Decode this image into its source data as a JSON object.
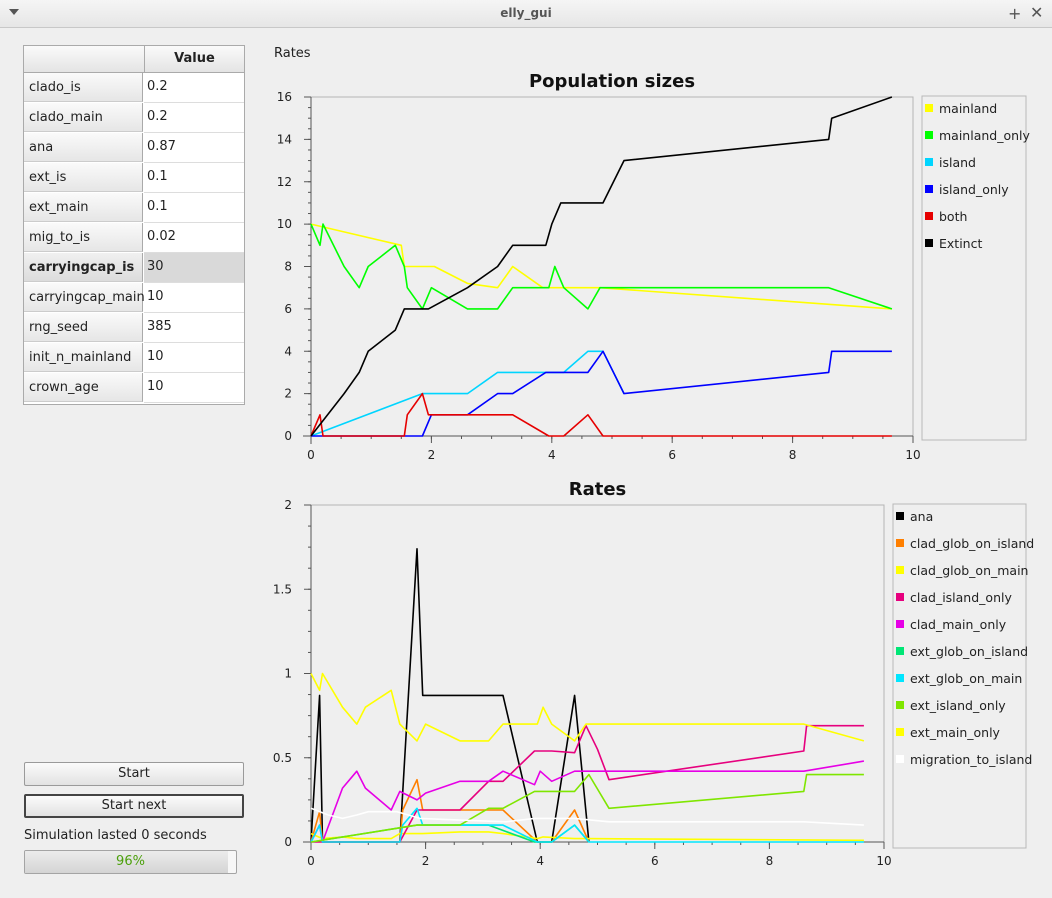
{
  "window": {
    "title": "elly_gui"
  },
  "params": {
    "header": "Value",
    "rows": [
      {
        "name": "clado_is",
        "value": "0.2"
      },
      {
        "name": "clado_main",
        "value": "0.2"
      },
      {
        "name": "ana",
        "value": "0.87"
      },
      {
        "name": "ext_is",
        "value": "0.1"
      },
      {
        "name": "ext_main",
        "value": "0.1"
      },
      {
        "name": "mig_to_is",
        "value": "0.02"
      },
      {
        "name": "carryingcap_is",
        "value": "30",
        "selected": true
      },
      {
        "name": "carryingcap_main",
        "value": "10"
      },
      {
        "name": "rng_seed",
        "value": "385"
      },
      {
        "name": "init_n_mainland",
        "value": "10"
      },
      {
        "name": "crown_age",
        "value": "10"
      }
    ]
  },
  "rates_label": "Rates",
  "buttons": {
    "start": "Start",
    "start_next": "Start next"
  },
  "status": "Simulation lasted 0 seconds",
  "progress": {
    "text": "96%",
    "value": 0.96
  },
  "chart_data": [
    {
      "type": "line",
      "title": "Population sizes",
      "xlim": [
        0,
        10
      ],
      "ylim": [
        0,
        16
      ],
      "xticks": [
        0,
        2,
        4,
        6,
        8,
        10
      ],
      "yticks": [
        0,
        2,
        4,
        6,
        8,
        10,
        12,
        14,
        16
      ],
      "legend": "right",
      "series": [
        {
          "name": "mainland",
          "color": "#ffff00",
          "x": [
            0,
            1.5,
            1.55,
            1.95,
            2.05,
            2.6,
            3.1,
            3.35,
            3.85,
            3.95,
            4.15,
            4.8,
            9.65
          ],
          "y": [
            10,
            9,
            8,
            8,
            8,
            7.2,
            7,
            8,
            7,
            7,
            7,
            7,
            6
          ]
        },
        {
          "name": "mainland_only",
          "color": "#00ff00",
          "x": [
            0,
            0.15,
            0.2,
            0.55,
            0.8,
            0.95,
            1.4,
            1.55,
            1.6,
            1.85,
            2.0,
            2.6,
            3.1,
            3.35,
            3.95,
            4.05,
            4.2,
            4.6,
            4.8,
            8.6,
            9.65
          ],
          "y": [
            10,
            9,
            10,
            8,
            7,
            8,
            9,
            8,
            7,
            6,
            7,
            6,
            6,
            7,
            7,
            8,
            7,
            6,
            7,
            7,
            6
          ]
        },
        {
          "name": "island",
          "color": "#00d5ff",
          "x": [
            0,
            1.85,
            2.6,
            3.1,
            3.9,
            4.2,
            4.6,
            4.85,
            5.2
          ],
          "y": [
            0,
            2,
            2,
            3,
            3,
            3,
            4,
            4,
            2
          ]
        },
        {
          "name": "island_only",
          "color": "#0000ff",
          "x": [
            0,
            1.85,
            2.0,
            2.6,
            3.1,
            3.35,
            3.9,
            4.6,
            4.85,
            5.2,
            8.6,
            8.65,
            9.65
          ],
          "y": [
            0,
            0,
            1,
            1,
            2,
            2,
            3,
            3,
            4,
            2,
            3,
            4,
            4
          ]
        },
        {
          "name": "both",
          "color": "#e60000",
          "x": [
            0,
            0.15,
            0.2,
            1.55,
            1.6,
            1.85,
            1.95,
            3.35,
            3.95,
            4.2,
            4.6,
            4.85,
            9.65
          ],
          "y": [
            0,
            1,
            0,
            0,
            1,
            2,
            1,
            1,
            0,
            0,
            1,
            0,
            0
          ]
        },
        {
          "name": "Extinct",
          "color": "#000000",
          "x": [
            0,
            0.55,
            0.8,
            0.95,
            1.4,
            1.55,
            1.95,
            2.6,
            3.1,
            3.35,
            3.9,
            4.0,
            4.15,
            4.85,
            5.2,
            8.6,
            8.65,
            9.65
          ],
          "y": [
            0,
            2,
            3,
            4,
            5,
            6,
            6,
            7,
            8,
            9,
            9,
            10,
            11,
            11,
            13,
            14,
            15,
            16
          ]
        }
      ]
    },
    {
      "type": "line",
      "title": "Rates",
      "xlim": [
        0,
        10
      ],
      "ylim": [
        0,
        2
      ],
      "xticks": [
        0,
        2,
        4,
        6,
        8,
        10
      ],
      "yticks": [
        0,
        0.5,
        1,
        1.5,
        2
      ],
      "legend": "right",
      "series": [
        {
          "name": "ana",
          "color": "#000000",
          "x": [
            0,
            0.15,
            0.2,
            1.55,
            1.85,
            1.95,
            3.35,
            3.95,
            4.2,
            4.6,
            4.85
          ],
          "y": [
            0,
            0.87,
            0,
            0,
            1.74,
            0.87,
            0.87,
            0,
            0,
            0.87,
            0
          ]
        },
        {
          "name": "clad_glob_on_island",
          "color": "#ff7f00",
          "x": [
            0,
            0.15,
            0.2,
            1.55,
            1.6,
            1.85,
            1.95,
            3.35,
            3.95,
            4.2,
            4.6,
            4.85
          ],
          "y": [
            0,
            0.18,
            0,
            0,
            0.19,
            0.37,
            0.19,
            0.19,
            0,
            0,
            0.19,
            0
          ]
        },
        {
          "name": "clad_glob_on_main",
          "color": "#ffff00",
          "x": [
            0,
            0.2,
            0.55,
            0.8,
            0.95,
            1.4,
            1.55,
            1.85,
            1.95,
            2.6,
            3.1,
            3.35,
            3.95,
            4.05,
            4.6,
            4.8,
            9.65
          ],
          "y": [
            0.05,
            0.02,
            0.03,
            0.02,
            0.02,
            0.02,
            0.05,
            0.05,
            0.05,
            0.06,
            0.06,
            0.05,
            0.02,
            0.03,
            0.02,
            0.02,
            0.01
          ]
        },
        {
          "name": "clad_island_only",
          "color": "#e6007e",
          "x": [
            0,
            1.55,
            1.85,
            1.95,
            2.6,
            3.1,
            3.35,
            3.9,
            4.2,
            4.6,
            4.8,
            5.0,
            5.2,
            8.6,
            8.65,
            9.65
          ],
          "y": [
            0,
            0,
            0.19,
            0.19,
            0.19,
            0.36,
            0.36,
            0.54,
            0.54,
            0.53,
            0.69,
            0.55,
            0.37,
            0.54,
            0.69,
            0.69
          ]
        },
        {
          "name": "clad_main_only",
          "color": "#e600e6",
          "x": [
            0,
            0.15,
            0.2,
            0.55,
            0.8,
            0.95,
            1.4,
            1.55,
            1.85,
            2.0,
            2.6,
            3.1,
            3.35,
            3.9,
            4.0,
            4.2,
            4.6,
            4.85,
            5.2,
            8.6,
            9.65
          ],
          "y": [
            0,
            0.1,
            0,
            0.32,
            0.42,
            0.32,
            0.19,
            0.3,
            0.25,
            0.29,
            0.36,
            0.36,
            0.42,
            0.34,
            0.42,
            0.36,
            0.42,
            0.42,
            0.42,
            0.42,
            0.48
          ]
        },
        {
          "name": "ext_glob_on_island",
          "color": "#00e676",
          "x": [
            0,
            1.85,
            2.6,
            3.1,
            3.9,
            4.2,
            4.6,
            4.85
          ],
          "y": [
            0,
            0.1,
            0.1,
            0.1,
            0,
            0,
            0.1,
            0
          ]
        },
        {
          "name": "ext_glob_on_main",
          "color": "#00e6ff",
          "x": [
            0,
            0.15,
            0.2,
            1.55,
            1.6,
            1.85,
            1.95,
            3.35,
            3.95,
            4.2,
            4.6,
            4.85,
            9.65
          ],
          "y": [
            0,
            0.1,
            0,
            0,
            0.1,
            0.2,
            0.1,
            0.1,
            0,
            0,
            0.1,
            0,
            0
          ]
        },
        {
          "name": "ext_island_only",
          "color": "#7fe600",
          "x": [
            0,
            1.85,
            2.6,
            3.1,
            3.35,
            3.9,
            4.6,
            4.85,
            5.2,
            8.6,
            8.65,
            9.65
          ],
          "y": [
            0,
            0.1,
            0.1,
            0.2,
            0.2,
            0.3,
            0.3,
            0.4,
            0.2,
            0.3,
            0.4,
            0.4
          ]
        },
        {
          "name": "ext_main_only",
          "color": "#ffff00",
          "x": [
            0,
            0.15,
            0.2,
            0.55,
            0.8,
            0.95,
            1.4,
            1.55,
            1.85,
            2.0,
            2.6,
            3.1,
            3.35,
            3.95,
            4.05,
            4.2,
            4.6,
            4.8,
            8.6,
            9.65
          ],
          "y": [
            1,
            0.9,
            1,
            0.8,
            0.7,
            0.8,
            0.9,
            0.7,
            0.6,
            0.7,
            0.6,
            0.6,
            0.7,
            0.7,
            0.8,
            0.7,
            0.6,
            0.7,
            0.7,
            0.6
          ]
        },
        {
          "name": "migration_to_island",
          "color": "#ffffff",
          "x": [
            0,
            0.3,
            0.55,
            0.8,
            1.0,
            1.5,
            1.9,
            2.6,
            3.4,
            3.9,
            4.6,
            5.2,
            8.6,
            9.65
          ],
          "y": [
            0.2,
            0.16,
            0.14,
            0.16,
            0.18,
            0.18,
            0.14,
            0.13,
            0.12,
            0.14,
            0.14,
            0.12,
            0.12,
            0.1
          ]
        }
      ]
    }
  ]
}
